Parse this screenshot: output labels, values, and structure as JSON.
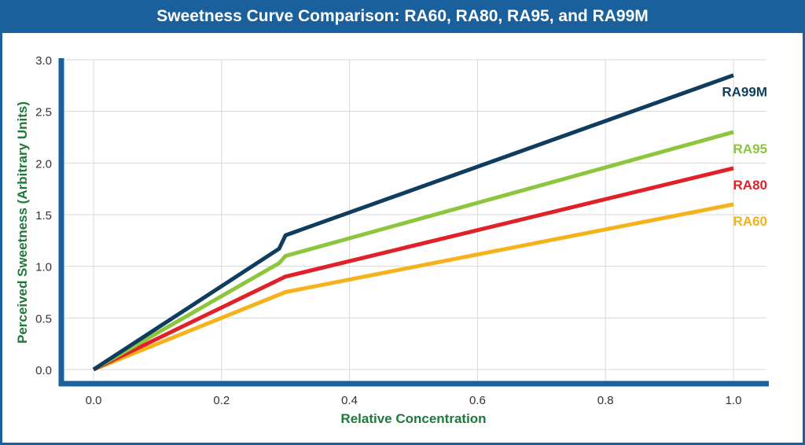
{
  "chart_data": {
    "type": "line",
    "title": "Sweetness Curve Comparison: RA60, RA80, RA95, and RA99M",
    "xlabel": "Relative Concentration",
    "ylabel": "Perceived Sweetness (Arbitrary Units)",
    "xlim": [
      0,
      1.0
    ],
    "ylim": [
      0,
      3.0
    ],
    "xticks": [
      "0.0",
      "0.2",
      "0.4",
      "0.6",
      "0.8",
      "1.0"
    ],
    "yticks": [
      "0.0",
      "0.5",
      "1.0",
      "1.5",
      "2.0",
      "2.5",
      "3.0"
    ],
    "grid": true,
    "legend": "inline-right",
    "series": [
      {
        "name": "RA99M",
        "color": "#0f3d5f",
        "x": [
          0,
          0.29,
          0.3,
          1.0
        ],
        "y": [
          0,
          1.17,
          1.3,
          2.85
        ]
      },
      {
        "name": "RA95",
        "color": "#8cc63f",
        "x": [
          0,
          0.29,
          0.3,
          1.0
        ],
        "y": [
          0,
          1.03,
          1.1,
          2.3
        ]
      },
      {
        "name": "RA80",
        "color": "#e02128",
        "x": [
          0,
          0.3,
          1.0
        ],
        "y": [
          0,
          0.9,
          1.95
        ]
      },
      {
        "name": "RA60",
        "color": "#f5b21b",
        "x": [
          0,
          0.3,
          1.0
        ],
        "y": [
          0,
          0.75,
          1.6
        ]
      }
    ]
  },
  "colors": {
    "frame": "#1a609c",
    "axis_label": "#1d7a3a",
    "grid": "#d8d8d8",
    "tick_text": "#333333"
  }
}
